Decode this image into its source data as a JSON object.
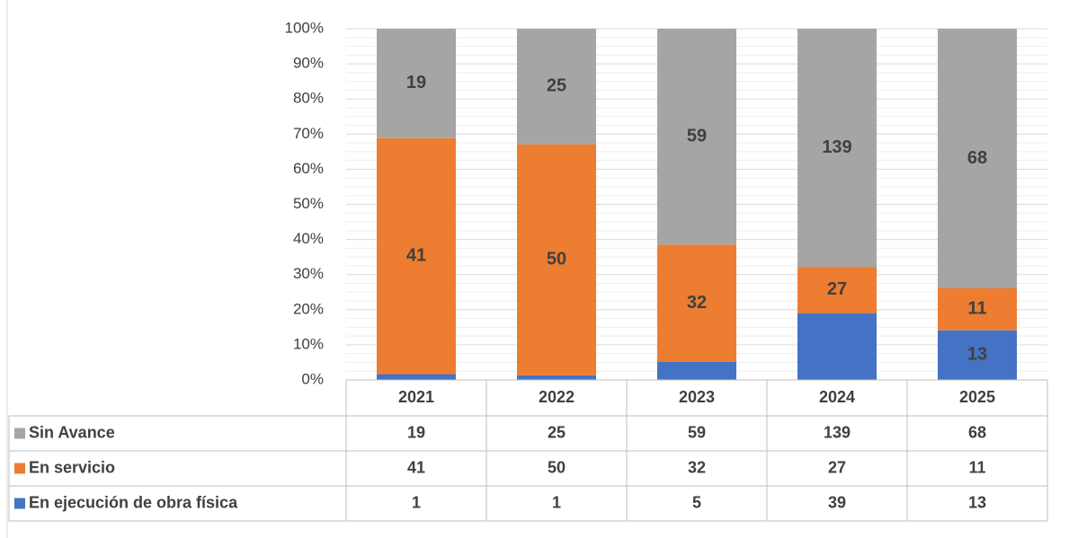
{
  "chart_data": {
    "type": "bar",
    "stacking": "percent",
    "categories": [
      "2021",
      "2022",
      "2023",
      "2024",
      "2025"
    ],
    "series": [
      {
        "name": "En ejecución de obra física",
        "color": "#4472c4",
        "values": [
          1,
          1,
          5,
          39,
          13
        ],
        "value_labels": [
          null,
          null,
          null,
          null,
          "13"
        ]
      },
      {
        "name": "En servicio",
        "color": "#ed7d31",
        "values": [
          41,
          50,
          32,
          27,
          11
        ]
      },
      {
        "name": "Sin Avance",
        "color": "#a5a5a5",
        "values": [
          19,
          25,
          59,
          139,
          68
        ]
      }
    ],
    "ylim": [
      0,
      100
    ],
    "yticks": [
      {
        "value": 0,
        "label": "0%"
      },
      {
        "value": 10,
        "label": "10%"
      },
      {
        "value": 20,
        "label": "20%"
      },
      {
        "value": 30,
        "label": "30%"
      },
      {
        "value": 40,
        "label": "40%"
      },
      {
        "value": 50,
        "label": "50%"
      },
      {
        "value": 60,
        "label": "60%"
      },
      {
        "value": 70,
        "label": "70%"
      },
      {
        "value": 80,
        "label": "80%"
      },
      {
        "value": 90,
        "label": "90%"
      },
      {
        "value": 100,
        "label": "100%"
      }
    ],
    "grid": true,
    "legend": "table"
  }
}
